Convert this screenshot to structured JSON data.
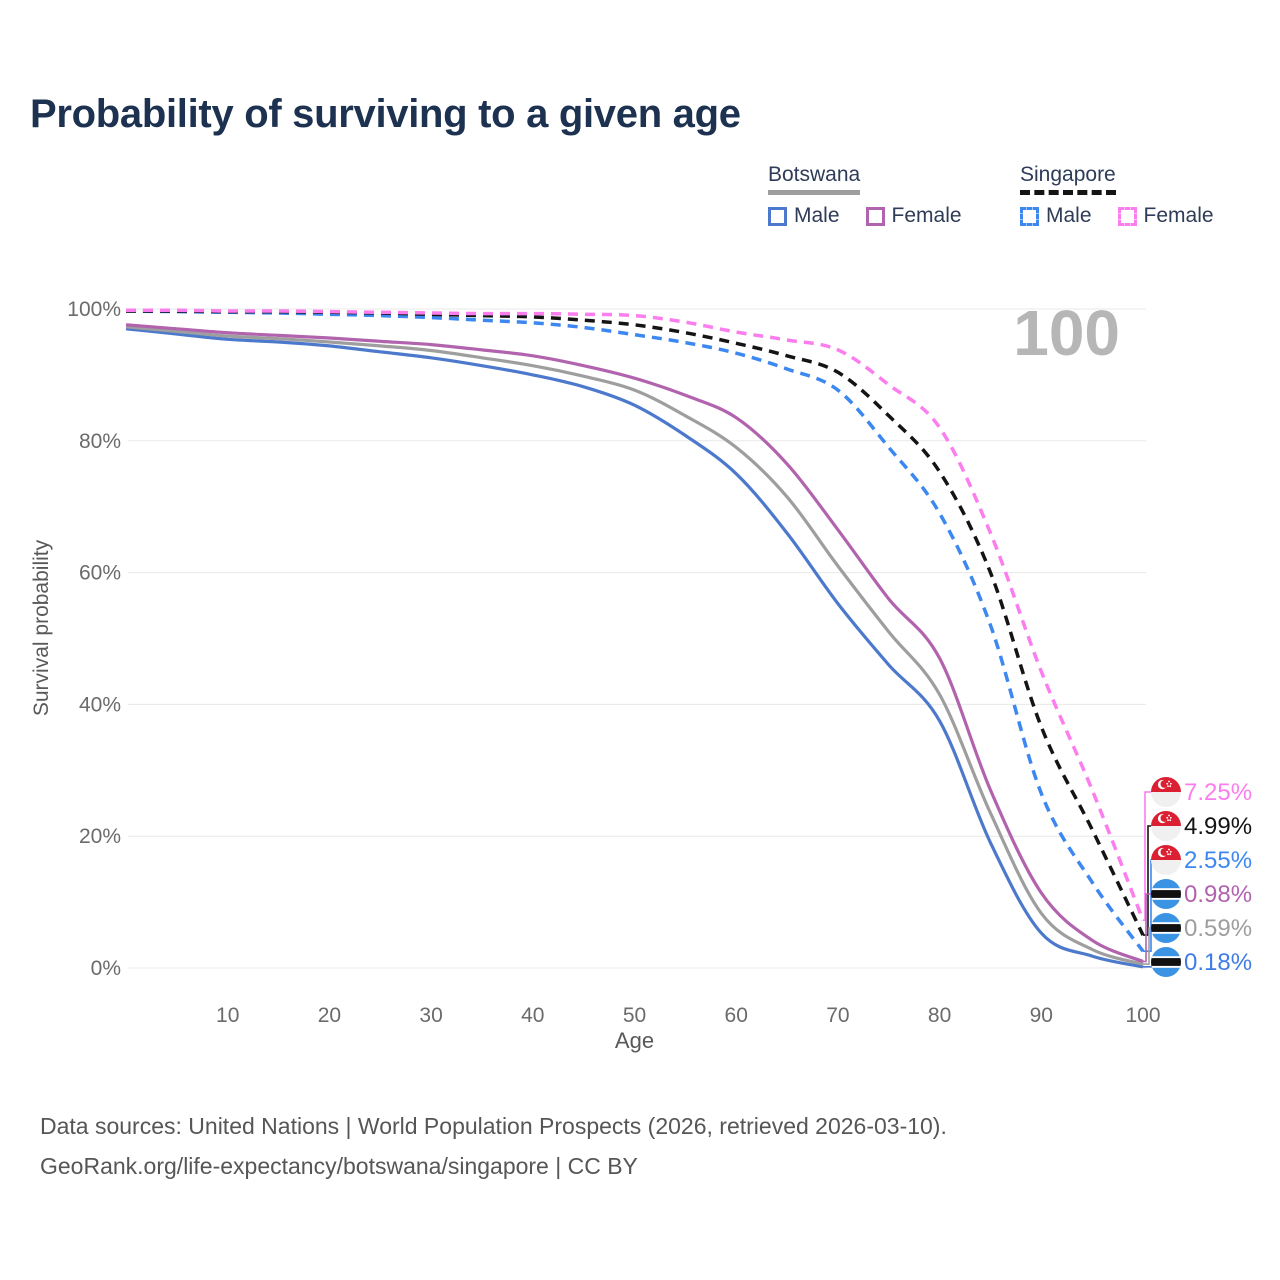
{
  "title": "Probability of surviving to a given age",
  "legend": {
    "groups": [
      {
        "label": "Botswana",
        "line_style": "solid",
        "underline_color": "#9e9e9e",
        "items": [
          {
            "label": "Male",
            "color": "#4d79cc",
            "dashed": false
          },
          {
            "label": "Female",
            "color": "#b163ae",
            "dashed": false
          }
        ]
      },
      {
        "label": "Singapore",
        "line_style": "dashed",
        "underline_color": "#141414",
        "items": [
          {
            "label": "Male",
            "color": "#3c87f0",
            "dashed": true
          },
          {
            "label": "Female",
            "color": "#fb7dee",
            "dashed": true
          }
        ]
      }
    ]
  },
  "chart_data": {
    "type": "line",
    "title": "Probability of surviving to a given age",
    "xlabel": "Age",
    "ylabel": "Survival probability",
    "xlim": [
      0,
      100
    ],
    "ylim": [
      0,
      100
    ],
    "grid": true,
    "legend_position": "top-right",
    "watermark": "100",
    "x_ticks": [
      10,
      20,
      30,
      40,
      50,
      60,
      70,
      80,
      90,
      100
    ],
    "y_ticks": [
      0,
      20,
      40,
      60,
      80,
      100
    ],
    "y_tick_suffix": "%",
    "x": [
      0,
      5,
      10,
      15,
      20,
      25,
      30,
      35,
      40,
      45,
      50,
      55,
      60,
      65,
      70,
      75,
      80,
      85,
      90,
      95,
      100
    ],
    "series": [
      {
        "name": "Botswana Male",
        "country": "botswana",
        "sex": "male",
        "color": "#4d79cc",
        "dashed": false,
        "end_label": "0.18%",
        "end_label_color": "#3f7de5",
        "values": [
          97.0,
          96.2,
          95.4,
          95.0,
          94.4,
          93.5,
          92.6,
          91.4,
          90.0,
          88.2,
          85.4,
          80.8,
          75.0,
          66.0,
          55.3,
          46.0,
          37.5,
          19.0,
          5.3,
          1.8,
          0.18
        ]
      },
      {
        "name": "Botswana All",
        "country": "botswana",
        "sex": "all",
        "color": "#9e9e9e",
        "dashed": false,
        "end_label": "0.59%",
        "end_label_color": "#9e9e9e",
        "values": [
          97.3,
          96.6,
          95.9,
          95.5,
          95.0,
          94.4,
          93.7,
          92.6,
          91.4,
          89.8,
          87.7,
          83.8,
          79.0,
          71.5,
          61.0,
          51.0,
          41.5,
          23.5,
          8.3,
          2.8,
          0.59
        ]
      },
      {
        "name": "Botswana Female",
        "country": "botswana",
        "sex": "female",
        "color": "#b163ae",
        "dashed": false,
        "end_label": "0.98%",
        "end_label_color": "#b163ae",
        "values": [
          97.6,
          97.0,
          96.4,
          96.0,
          95.6,
          95.1,
          94.6,
          93.8,
          92.9,
          91.4,
          89.5,
          86.9,
          83.5,
          76.5,
          66.5,
          56.0,
          47.0,
          27.0,
          11.4,
          4.2,
          0.98
        ]
      },
      {
        "name": "Singapore Male",
        "country": "singapore",
        "sex": "male",
        "color": "#3c87f0",
        "dashed": true,
        "end_label": "2.55%",
        "end_label_color": "#3c87f0",
        "values": [
          99.7,
          99.6,
          99.5,
          99.4,
          99.2,
          99.0,
          98.7,
          98.3,
          97.9,
          97.2,
          96.1,
          94.9,
          93.3,
          90.9,
          87.7,
          79.0,
          69.0,
          52.0,
          26.5,
          13.0,
          2.55
        ]
      },
      {
        "name": "Singapore All",
        "country": "singapore",
        "sex": "all",
        "color": "#141414",
        "dashed": true,
        "end_label": "4.99%",
        "end_label_color": "#141414",
        "values": [
          99.7,
          99.7,
          99.6,
          99.6,
          99.5,
          99.4,
          99.2,
          99.0,
          98.8,
          98.3,
          97.6,
          96.4,
          94.8,
          92.9,
          90.4,
          83.8,
          75.3,
          60.0,
          36.6,
          21.0,
          4.99
        ]
      },
      {
        "name": "Singapore Female",
        "country": "singapore",
        "sex": "female",
        "color": "#fb7dee",
        "dashed": true,
        "end_label": "7.25%",
        "end_label_color": "#fb7dee",
        "values": [
          99.8,
          99.8,
          99.7,
          99.7,
          99.6,
          99.5,
          99.4,
          99.3,
          99.3,
          99.2,
          99.0,
          98.0,
          96.5,
          95.3,
          93.8,
          88.5,
          82.0,
          66.0,
          45.0,
          27.0,
          7.25
        ]
      }
    ],
    "flag_colors": {
      "singapore_red": "#dc2033",
      "singapore_white": "#f0f0f0",
      "botswana_blue": "#3b93e4",
      "botswana_black": "#101010",
      "botswana_white": "#ffffff"
    }
  },
  "footer": {
    "line1": "Data sources: United Nations | World Population Prospects (2026, retrieved 2026-03-10).",
    "line2": "GeoRank.org/life-expectancy/botswana/singapore | CC BY"
  }
}
